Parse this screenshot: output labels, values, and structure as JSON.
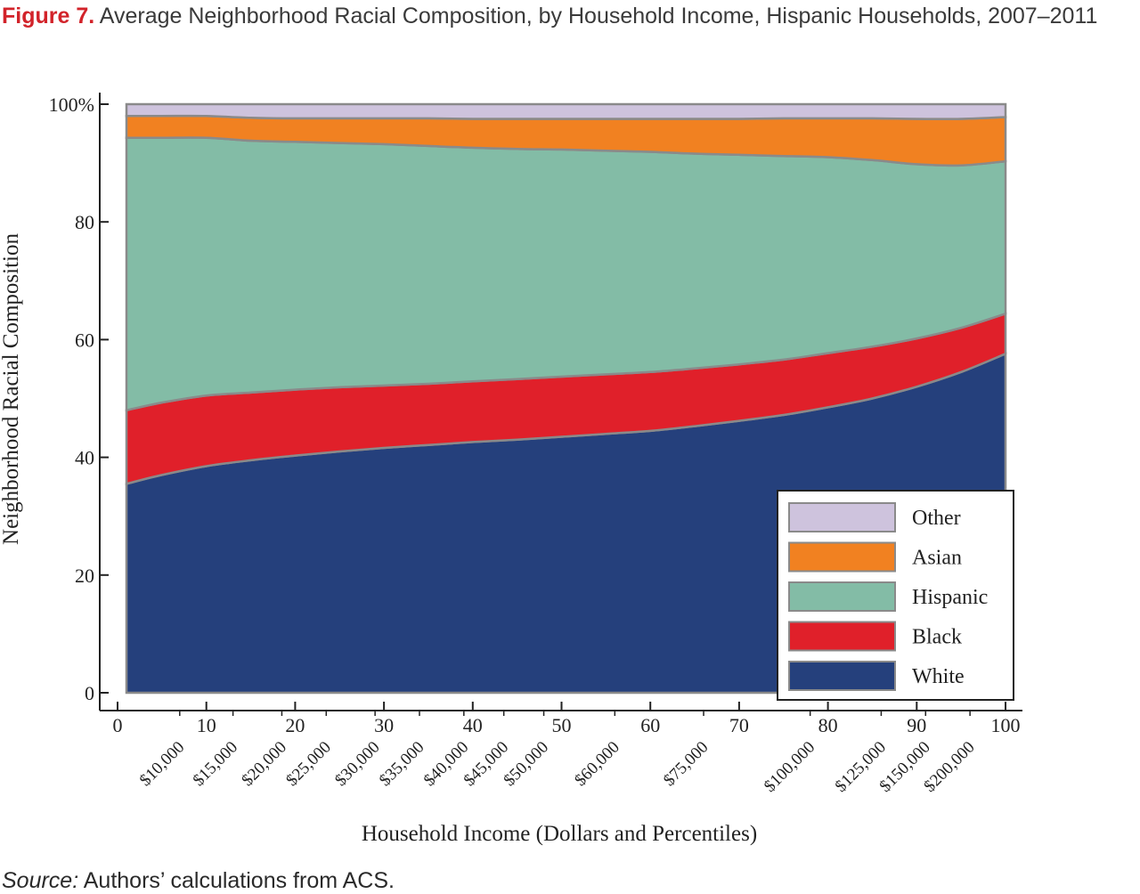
{
  "figure": {
    "label": "Figure 7.",
    "title": "Average Neighborhood Racial Composition, by Household Income, Hispanic Households, 2007–2011"
  },
  "source": {
    "label": "Source:",
    "text": "Authors’ calculations from ACS."
  },
  "chart_data": {
    "type": "area",
    "stacked": true,
    "title": "Average Neighborhood Racial Composition, by Household Income, Hispanic Households, 2007–2011",
    "xlabel": "Household Income (Dollars and Percentiles)",
    "ylabel": "Neighborhood Racial Composition",
    "xlim": [
      0,
      100
    ],
    "ylim": [
      0,
      100
    ],
    "x_ticks": [
      0,
      10,
      20,
      30,
      40,
      50,
      60,
      70,
      80,
      90,
      100
    ],
    "x_tick_labels": [
      "0",
      "10",
      "20",
      "30",
      "40",
      "50",
      "60",
      "70",
      "80",
      "90",
      "100"
    ],
    "y_ticks": [
      0,
      20,
      40,
      60,
      80,
      100
    ],
    "y_tick_labels": [
      "0",
      "20",
      "40",
      "60",
      "80",
      "100%"
    ],
    "dollar_ticks": [
      {
        "x": 7,
        "label": "$10,000"
      },
      {
        "x": 13,
        "label": "$15,000"
      },
      {
        "x": 18.5,
        "label": "$20,000"
      },
      {
        "x": 23.5,
        "label": "$25,000"
      },
      {
        "x": 29,
        "label": "$30,000"
      },
      {
        "x": 34,
        "label": "$35,000"
      },
      {
        "x": 39,
        "label": "$40,000"
      },
      {
        "x": 43.5,
        "label": "$45,000"
      },
      {
        "x": 48,
        "label": "$50,000"
      },
      {
        "x": 56,
        "label": "$60,000"
      },
      {
        "x": 66,
        "label": "$75,000"
      },
      {
        "x": 78,
        "label": "$100,000"
      },
      {
        "x": 86,
        "label": "$125,000"
      },
      {
        "x": 91,
        "label": "$150,000"
      },
      {
        "x": 96,
        "label": "$200,000"
      }
    ],
    "x": [
      1,
      5,
      10,
      15,
      20,
      25,
      30,
      35,
      40,
      45,
      50,
      55,
      60,
      65,
      70,
      75,
      80,
      85,
      90,
      95,
      100
    ],
    "series": [
      {
        "name": "White",
        "color": "#25407c",
        "values": [
          35.5,
          37.0,
          38.5,
          39.5,
          40.3,
          41.0,
          41.6,
          42.1,
          42.6,
          43.0,
          43.5,
          44.0,
          44.5,
          45.3,
          46.2,
          47.2,
          48.5,
          50.0,
          52.0,
          54.5,
          57.6
        ]
      },
      {
        "name": "Black",
        "color": "#e0202a",
        "values": [
          12.5,
          12.3,
          12.0,
          11.5,
          11.2,
          10.9,
          10.6,
          10.4,
          10.3,
          10.3,
          10.2,
          10.1,
          10.0,
          9.8,
          9.6,
          9.4,
          9.2,
          8.8,
          8.2,
          7.5,
          6.8
        ]
      },
      {
        "name": "Hispanic",
        "color": "#83bca6",
        "values": [
          46.3,
          45.0,
          43.8,
          42.8,
          42.1,
          41.5,
          41.0,
          40.4,
          39.7,
          39.1,
          38.6,
          38.0,
          37.4,
          36.5,
          35.6,
          34.6,
          33.3,
          31.7,
          29.6,
          27.6,
          25.9
        ]
      },
      {
        "name": "Asian",
        "color": "#f18121",
        "values": [
          3.7,
          3.7,
          3.7,
          3.9,
          4.0,
          4.2,
          4.4,
          4.7,
          4.9,
          5.1,
          5.2,
          5.4,
          5.6,
          5.9,
          6.1,
          6.4,
          6.6,
          7.1,
          7.7,
          7.9,
          7.5
        ]
      },
      {
        "name": "Other",
        "color": "#cec3dd",
        "values": [
          2.0,
          2.0,
          2.0,
          2.3,
          2.4,
          2.4,
          2.4,
          2.4,
          2.5,
          2.5,
          2.5,
          2.5,
          2.5,
          2.5,
          2.5,
          2.4,
          2.4,
          2.4,
          2.5,
          2.5,
          2.2
        ]
      }
    ],
    "legend_order": [
      "Other",
      "Asian",
      "Hispanic",
      "Black",
      "White"
    ],
    "legend_position": "lower-right",
    "grid": false
  }
}
